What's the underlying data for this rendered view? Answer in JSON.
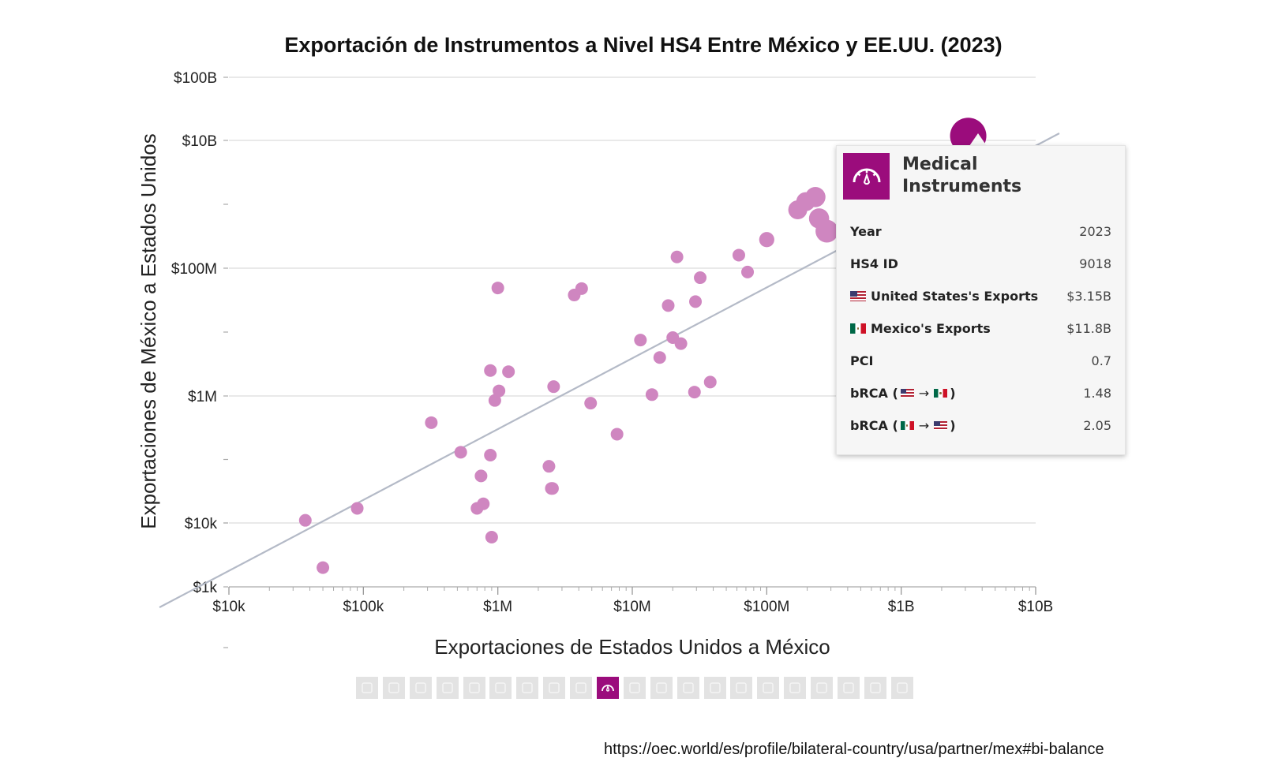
{
  "chart_data": {
    "type": "scatter",
    "title": "Exportación de Instrumentos a Nivel HS4 Entre México y EE.UU. (2023)",
    "xlabel": "Exportaciones de Estados Unidos a México",
    "ylabel": "Exportaciones de México a Estados Unidos",
    "x_scale": "log",
    "y_scale": "log",
    "xlim": [
      10000,
      10000000000
    ],
    "ylim": [
      1000,
      100000000000
    ],
    "x_ticks": [
      "$10k",
      "$100k",
      "$1M",
      "$10M",
      "$100M",
      "$1B",
      "$10B"
    ],
    "y_ticks": [
      "$1k",
      "$10k",
      "$1M",
      "$100M",
      "$10B",
      "$100B"
    ],
    "grid": true,
    "reference_line": "y = x",
    "colors": {
      "points": "#cf86c0",
      "highlight": "#9b0c7c",
      "line": "#b4bac7",
      "grid": "#e2e2e2"
    },
    "points": [
      {
        "x": 37000,
        "y": 11000,
        "size": 1
      },
      {
        "x": 50000,
        "y": 2000,
        "size": 1
      },
      {
        "x": 90000,
        "y": 17000,
        "size": 1
      },
      {
        "x": 320000,
        "y": 380000,
        "size": 1
      },
      {
        "x": 530000,
        "y": 130000,
        "size": 1
      },
      {
        "x": 750000,
        "y": 55000,
        "size": 1
      },
      {
        "x": 780000,
        "y": 20000,
        "size": 1
      },
      {
        "x": 700000,
        "y": 17000,
        "size": 1
      },
      {
        "x": 880000,
        "y": 117000,
        "size": 1
      },
      {
        "x": 900000,
        "y": 6000,
        "size": 1
      },
      {
        "x": 880000,
        "y": 2500000,
        "size": 1
      },
      {
        "x": 950000,
        "y": 850000,
        "size": 1
      },
      {
        "x": 1000000,
        "y": 49000000,
        "size": 1
      },
      {
        "x": 1020000,
        "y": 1200000,
        "size": 1
      },
      {
        "x": 1200000,
        "y": 2400000,
        "size": 1
      },
      {
        "x": 2400000,
        "y": 78000,
        "size": 1
      },
      {
        "x": 2500000,
        "y": 35000,
        "size": 1
      },
      {
        "x": 2550000,
        "y": 35000,
        "size": 1
      },
      {
        "x": 2600000,
        "y": 1400000,
        "size": 1
      },
      {
        "x": 3700000,
        "y": 38000000,
        "size": 1
      },
      {
        "x": 4200000,
        "y": 48000000,
        "size": 1
      },
      {
        "x": 4900000,
        "y": 770000,
        "size": 1
      },
      {
        "x": 7700000,
        "y": 250000,
        "size": 1
      },
      {
        "x": 11500000,
        "y": 7500000,
        "size": 1
      },
      {
        "x": 14000000,
        "y": 1050000,
        "size": 1
      },
      {
        "x": 16000000,
        "y": 4000000,
        "size": 1
      },
      {
        "x": 18500000,
        "y": 26000000,
        "size": 1
      },
      {
        "x": 20000000,
        "y": 8200000,
        "size": 1
      },
      {
        "x": 21500000,
        "y": 150000000,
        "size": 1
      },
      {
        "x": 23000000,
        "y": 6600000,
        "size": 1
      },
      {
        "x": 29000000,
        "y": 1150000,
        "size": 1
      },
      {
        "x": 29500000,
        "y": 30000000,
        "size": 1
      },
      {
        "x": 32000000,
        "y": 71000000,
        "size": 1
      },
      {
        "x": 38000000,
        "y": 1650000,
        "size": 1
      },
      {
        "x": 62000000,
        "y": 160000000,
        "size": 1
      },
      {
        "x": 72000000,
        "y": 87000000,
        "size": 1
      },
      {
        "x": 100000000,
        "y": 280000000,
        "size": 1.2
      },
      {
        "x": 170000000,
        "y": 820000000,
        "size": 1.5
      },
      {
        "x": 195000000,
        "y": 1100000000,
        "size": 1.5
      },
      {
        "x": 230000000,
        "y": 1300000000,
        "size": 1.6
      },
      {
        "x": 245000000,
        "y": 600000000,
        "size": 1.6
      },
      {
        "x": 280000000,
        "y": 380000000,
        "size": 1.8
      },
      {
        "x": 3150000000,
        "y": 11800000000,
        "size": 3,
        "highlight": true
      }
    ]
  },
  "tooltip": {
    "title": "Medical Instruments",
    "icon": "medical-gauge-icon",
    "rows": [
      {
        "label": "Year",
        "value": "2023"
      },
      {
        "label": "HS4 ID",
        "value": "9018"
      },
      {
        "label": "United States's Exports",
        "value": "$3.15B",
        "flag": "us"
      },
      {
        "label": "Mexico's Exports",
        "value": "$11.8B",
        "flag": "mx"
      },
      {
        "label": "PCI",
        "value": "0.7"
      },
      {
        "label": "bRCA (",
        "arrow": "→",
        "label_end": ")",
        "value": "1.48",
        "flags": [
          "us",
          "mx"
        ]
      },
      {
        "label": "bRCA (",
        "arrow": "→",
        "label_end": ")",
        "value": "2.05",
        "flags": [
          "mx",
          "us"
        ]
      }
    ]
  },
  "icon_strip": {
    "icons": [
      "animal-products-icon",
      "vegetable-products-icon",
      "fats-icon",
      "foodstuffs-icon",
      "minerals-icon",
      "chemicals-icon",
      "plastics-icon",
      "hides-icon",
      "wood-icon",
      "instruments-icon",
      "textiles-icon",
      "footwear-icon",
      "stone-icon",
      "precious-metals-icon",
      "metals-icon",
      "machines-icon",
      "transportation-icon",
      "weapons-icon",
      "misc-icon",
      "arts-icon",
      "services-icon"
    ],
    "active_index": 9
  },
  "source_url": "https://oec.world/es/profile/bilateral-country/usa/partner/mex#bi-balance"
}
